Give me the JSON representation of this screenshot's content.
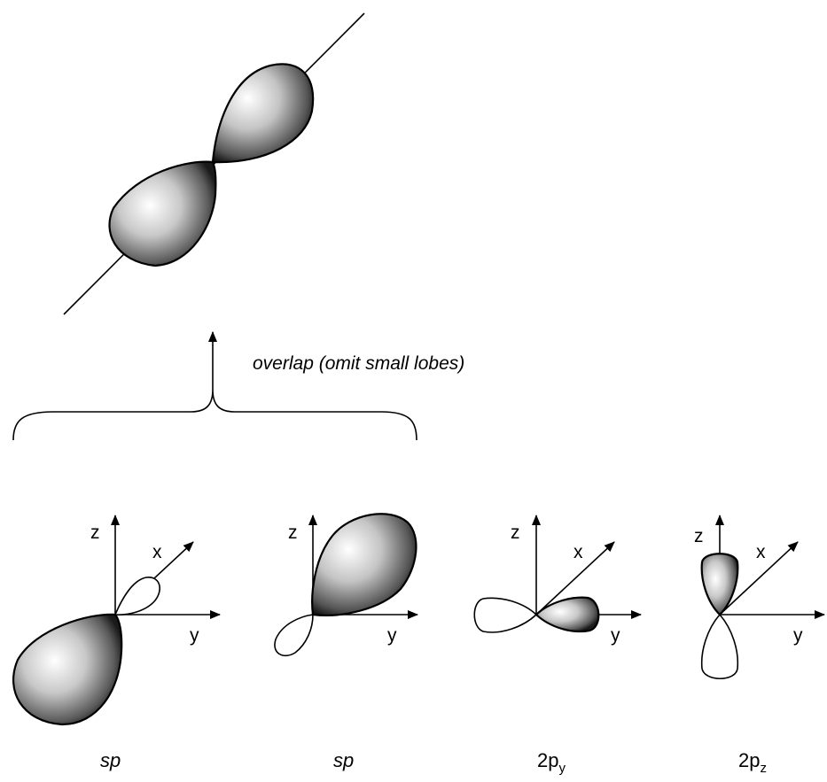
{
  "caption": "overlap (omit small lobes)",
  "orbitals": [
    {
      "name": "sp",
      "axes": [
        "z",
        "x",
        "y"
      ]
    },
    {
      "name": "sp",
      "axes": [
        "z",
        "y"
      ]
    },
    {
      "name": "2p",
      "subscript": "y",
      "axes": [
        "z",
        "x",
        "y"
      ]
    },
    {
      "name": "2p",
      "subscript": "z",
      "axes": [
        "z",
        "x",
        "y"
      ]
    }
  ]
}
